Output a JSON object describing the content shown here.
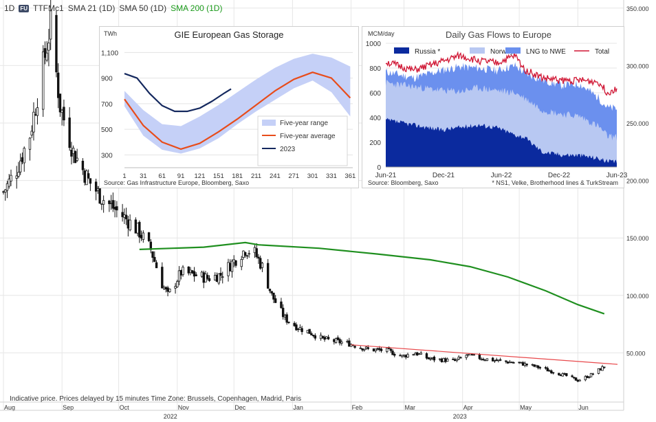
{
  "header": {
    "interval": "1D",
    "badge": "FU",
    "symbol": "TTFMc1",
    "sma21": "SMA 21 (1D)",
    "sma50": "SMA 50 (1D)",
    "sma200": "SMA 200 (1D)"
  },
  "footnote": "Indicative price. Prices delayed by 15 minutes   Time Zone: Brussels, Copenhagen, Madrid, Paris",
  "colors": {
    "sma200": "#1f8f1f",
    "trendline": "#e8474a",
    "candle": "#111111",
    "grid": "#e6e6e6"
  },
  "chart_data": [
    {
      "type": "candlestick",
      "symbol": "TTFMc1",
      "y_ticks": [
        "350.000",
        "300.000",
        "250.000",
        "200.000",
        "150.000",
        "100.000",
        "50.000"
      ],
      "ylim": [
        0,
        350
      ],
      "x_month_labels": [
        "Aug",
        "Sep",
        "Oct",
        "Nov",
        "Dec",
        "Jan",
        "Feb",
        "Mar",
        "Apr",
        "May",
        "Jun"
      ],
      "x_year_labels": [
        "2022",
        "2023"
      ],
      "grid": true,
      "close_path": [
        [
          "2022-08-01",
          190
        ],
        [
          "2022-08-08",
          210
        ],
        [
          "2022-08-15",
          240
        ],
        [
          "2022-08-22",
          300
        ],
        [
          "2022-08-26",
          335
        ],
        [
          "2022-08-31",
          265
        ],
        [
          "2022-09-07",
          225
        ],
        [
          "2022-09-15",
          200
        ],
        [
          "2022-09-22",
          185
        ],
        [
          "2022-09-29",
          175
        ],
        [
          "2022-10-06",
          165
        ],
        [
          "2022-10-12",
          155
        ],
        [
          "2022-10-18",
          140
        ],
        [
          "2022-10-24",
          110
        ],
        [
          "2022-10-27",
          100
        ],
        [
          "2022-11-03",
          120
        ],
        [
          "2022-11-10",
          118
        ],
        [
          "2022-11-17",
          115
        ],
        [
          "2022-11-24",
          118
        ],
        [
          "2022-12-01",
          130
        ],
        [
          "2022-12-07",
          140
        ],
        [
          "2022-12-12",
          137
        ],
        [
          "2022-12-16",
          125
        ],
        [
          "2022-12-21",
          100
        ],
        [
          "2022-12-28",
          80
        ],
        [
          "2023-01-04",
          72
        ],
        [
          "2023-01-10",
          68
        ],
        [
          "2023-01-17",
          62
        ],
        [
          "2023-01-24",
          60
        ],
        [
          "2023-01-31",
          58
        ],
        [
          "2023-02-10",
          53
        ],
        [
          "2023-02-20",
          52
        ],
        [
          "2023-02-28",
          47
        ],
        [
          "2023-03-07",
          50
        ],
        [
          "2023-03-14",
          45
        ],
        [
          "2023-03-21",
          44
        ],
        [
          "2023-03-28",
          43
        ],
        [
          "2023-04-03",
          48
        ],
        [
          "2023-04-12",
          45
        ],
        [
          "2023-04-20",
          43
        ],
        [
          "2023-05-01",
          41
        ],
        [
          "2023-05-10",
          38
        ],
        [
          "2023-05-18",
          34
        ],
        [
          "2023-05-26",
          30
        ],
        [
          "2023-06-01",
          26
        ],
        [
          "2023-06-07",
          30
        ],
        [
          "2023-06-12",
          35
        ],
        [
          "2023-06-15",
          38
        ]
      ],
      "sma200_path": [
        [
          "2022-10-12",
          140
        ],
        [
          "2022-11-15",
          142
        ],
        [
          "2022-12-07",
          146
        ],
        [
          "2022-12-14",
          144
        ],
        [
          "2023-01-15",
          141
        ],
        [
          "2023-02-15",
          136
        ],
        [
          "2023-03-15",
          131
        ],
        [
          "2023-04-05",
          125
        ],
        [
          "2023-04-25",
          116
        ],
        [
          "2023-05-15",
          104
        ],
        [
          "2023-06-01",
          92
        ],
        [
          "2023-06-15",
          84
        ]
      ],
      "trendline": [
        [
          "2023-02-01",
          57
        ],
        [
          "2023-06-22",
          40
        ]
      ],
      "series": [
        {
          "name": "SMA 21 (1D)"
        },
        {
          "name": "SMA 50 (1D)"
        },
        {
          "name": "SMA 200 (1D)"
        }
      ]
    },
    {
      "type": "area",
      "title": "GIE European Gas Storage",
      "ylabel": "TWh",
      "y_ticks": [
        "300",
        "500",
        "700",
        "900",
        "1,100"
      ],
      "x_ticks": [
        "1",
        "31",
        "61",
        "91",
        "121",
        "151",
        "181",
        "211",
        "241",
        "271",
        "301",
        "331",
        "361"
      ],
      "xlim": [
        1,
        365
      ],
      "ylim": [
        200,
        1150
      ],
      "source": "Source: Gas Infrastructure Europe, Bloomberg, Saxo",
      "legend": [
        "Five-year range",
        "Five-year average",
        "2023"
      ],
      "legend_position": "bottom-right",
      "series": [
        {
          "name": "Five-year range",
          "color": "#c5d0f7",
          "upper": [
            [
              1,
              800
            ],
            [
              31,
              650
            ],
            [
              61,
              540
            ],
            [
              91,
              525
            ],
            [
              121,
              600
            ],
            [
              151,
              690
            ],
            [
              181,
              790
            ],
            [
              211,
              890
            ],
            [
              241,
              980
            ],
            [
              271,
              1050
            ],
            [
              301,
              1090
            ],
            [
              331,
              1060
            ],
            [
              361,
              990
            ]
          ],
          "lower": [
            [
              1,
              680
            ],
            [
              31,
              450
            ],
            [
              61,
              340
            ],
            [
              91,
              310
            ],
            [
              121,
              350
            ],
            [
              151,
              430
            ],
            [
              181,
              540
            ],
            [
              211,
              640
            ],
            [
              241,
              730
            ],
            [
              271,
              820
            ],
            [
              301,
              880
            ],
            [
              331,
              790
            ],
            [
              361,
              600
            ]
          ]
        },
        {
          "name": "Five-year average",
          "color": "#e84c1a",
          "values": [
            [
              1,
              735
            ],
            [
              31,
              530
            ],
            [
              61,
              400
            ],
            [
              91,
              345
            ],
            [
              121,
              390
            ],
            [
              151,
              480
            ],
            [
              181,
              580
            ],
            [
              211,
              690
            ],
            [
              241,
              800
            ],
            [
              271,
              890
            ],
            [
              301,
              945
            ],
            [
              331,
              900
            ],
            [
              361,
              745
            ]
          ]
        },
        {
          "name": "2023",
          "color": "#14285e",
          "values": [
            [
              1,
              935
            ],
            [
              21,
              900
            ],
            [
              41,
              780
            ],
            [
              61,
              685
            ],
            [
              81,
              640
            ],
            [
              101,
              640
            ],
            [
              121,
              665
            ],
            [
              141,
              720
            ],
            [
              161,
              785
            ],
            [
              171,
              815
            ]
          ]
        }
      ]
    },
    {
      "type": "area",
      "title": "Daily Gas Flows to Europe",
      "ylabel": "MCM/day",
      "y_ticks": [
        "0",
        "200",
        "400",
        "600",
        "800",
        "1000"
      ],
      "x_ticks": [
        "Jun-21",
        "Dec-21",
        "Jun-22",
        "Dec-22",
        "Jun-23"
      ],
      "ylim": [
        0,
        1000
      ],
      "source": "Source:  Bloomberg, Saxo",
      "note": "* NS1, Velke, Brotherhood lines & TurkStream",
      "legend": [
        "Russia *",
        "Norway",
        "LNG to NWE",
        "Total"
      ],
      "legend_position": "top",
      "series": [
        {
          "name": "Russia *",
          "color": "#0b2a9e",
          "values": [
            [
              0,
              380
            ],
            [
              3,
              340
            ],
            [
              6,
              300
            ],
            [
              8,
              320
            ],
            [
              10,
              340
            ],
            [
              12,
              320
            ],
            [
              14,
              260
            ],
            [
              15,
              240
            ],
            [
              17,
              120
            ],
            [
              19,
              100
            ],
            [
              21,
              95
            ],
            [
              23,
              70
            ],
            [
              24,
              45
            ],
            [
              25,
              40
            ]
          ]
        },
        {
          "name": "Norway",
          "color": "#b8c8f2",
          "values": [
            [
              0,
              680
            ],
            [
              3,
              650
            ],
            [
              6,
              620
            ],
            [
              8,
              610
            ],
            [
              10,
              640
            ],
            [
              12,
              620
            ],
            [
              14,
              600
            ],
            [
              15,
              560
            ],
            [
              17,
              460
            ],
            [
              19,
              430
            ],
            [
              21,
              410
            ],
            [
              23,
              330
            ],
            [
              24,
              250
            ],
            [
              25,
              240
            ]
          ]
        },
        {
          "name": "LNG to NWE",
          "color": "#6b90ee",
          "values": [
            [
              0,
              770
            ],
            [
              3,
              720
            ],
            [
              6,
              780
            ],
            [
              8,
              810
            ],
            [
              10,
              800
            ],
            [
              12,
              780
            ],
            [
              14,
              820
            ],
            [
              15,
              760
            ],
            [
              17,
              700
            ],
            [
              19,
              660
            ],
            [
              21,
              670
            ],
            [
              23,
              560
            ],
            [
              24,
              480
            ],
            [
              25,
              470
            ]
          ]
        },
        {
          "name": "Total",
          "color": "#d01533",
          "values": [
            [
              0,
              850
            ],
            [
              3,
              780
            ],
            [
              6,
              850
            ],
            [
              8,
              900
            ],
            [
              10,
              860
            ],
            [
              12,
              840
            ],
            [
              14,
              900
            ],
            [
              15,
              790
            ],
            [
              17,
              720
            ],
            [
              19,
              700
            ],
            [
              21,
              700
            ],
            [
              23,
              690
            ],
            [
              24,
              600
            ],
            [
              25,
              640
            ]
          ]
        }
      ]
    }
  ]
}
